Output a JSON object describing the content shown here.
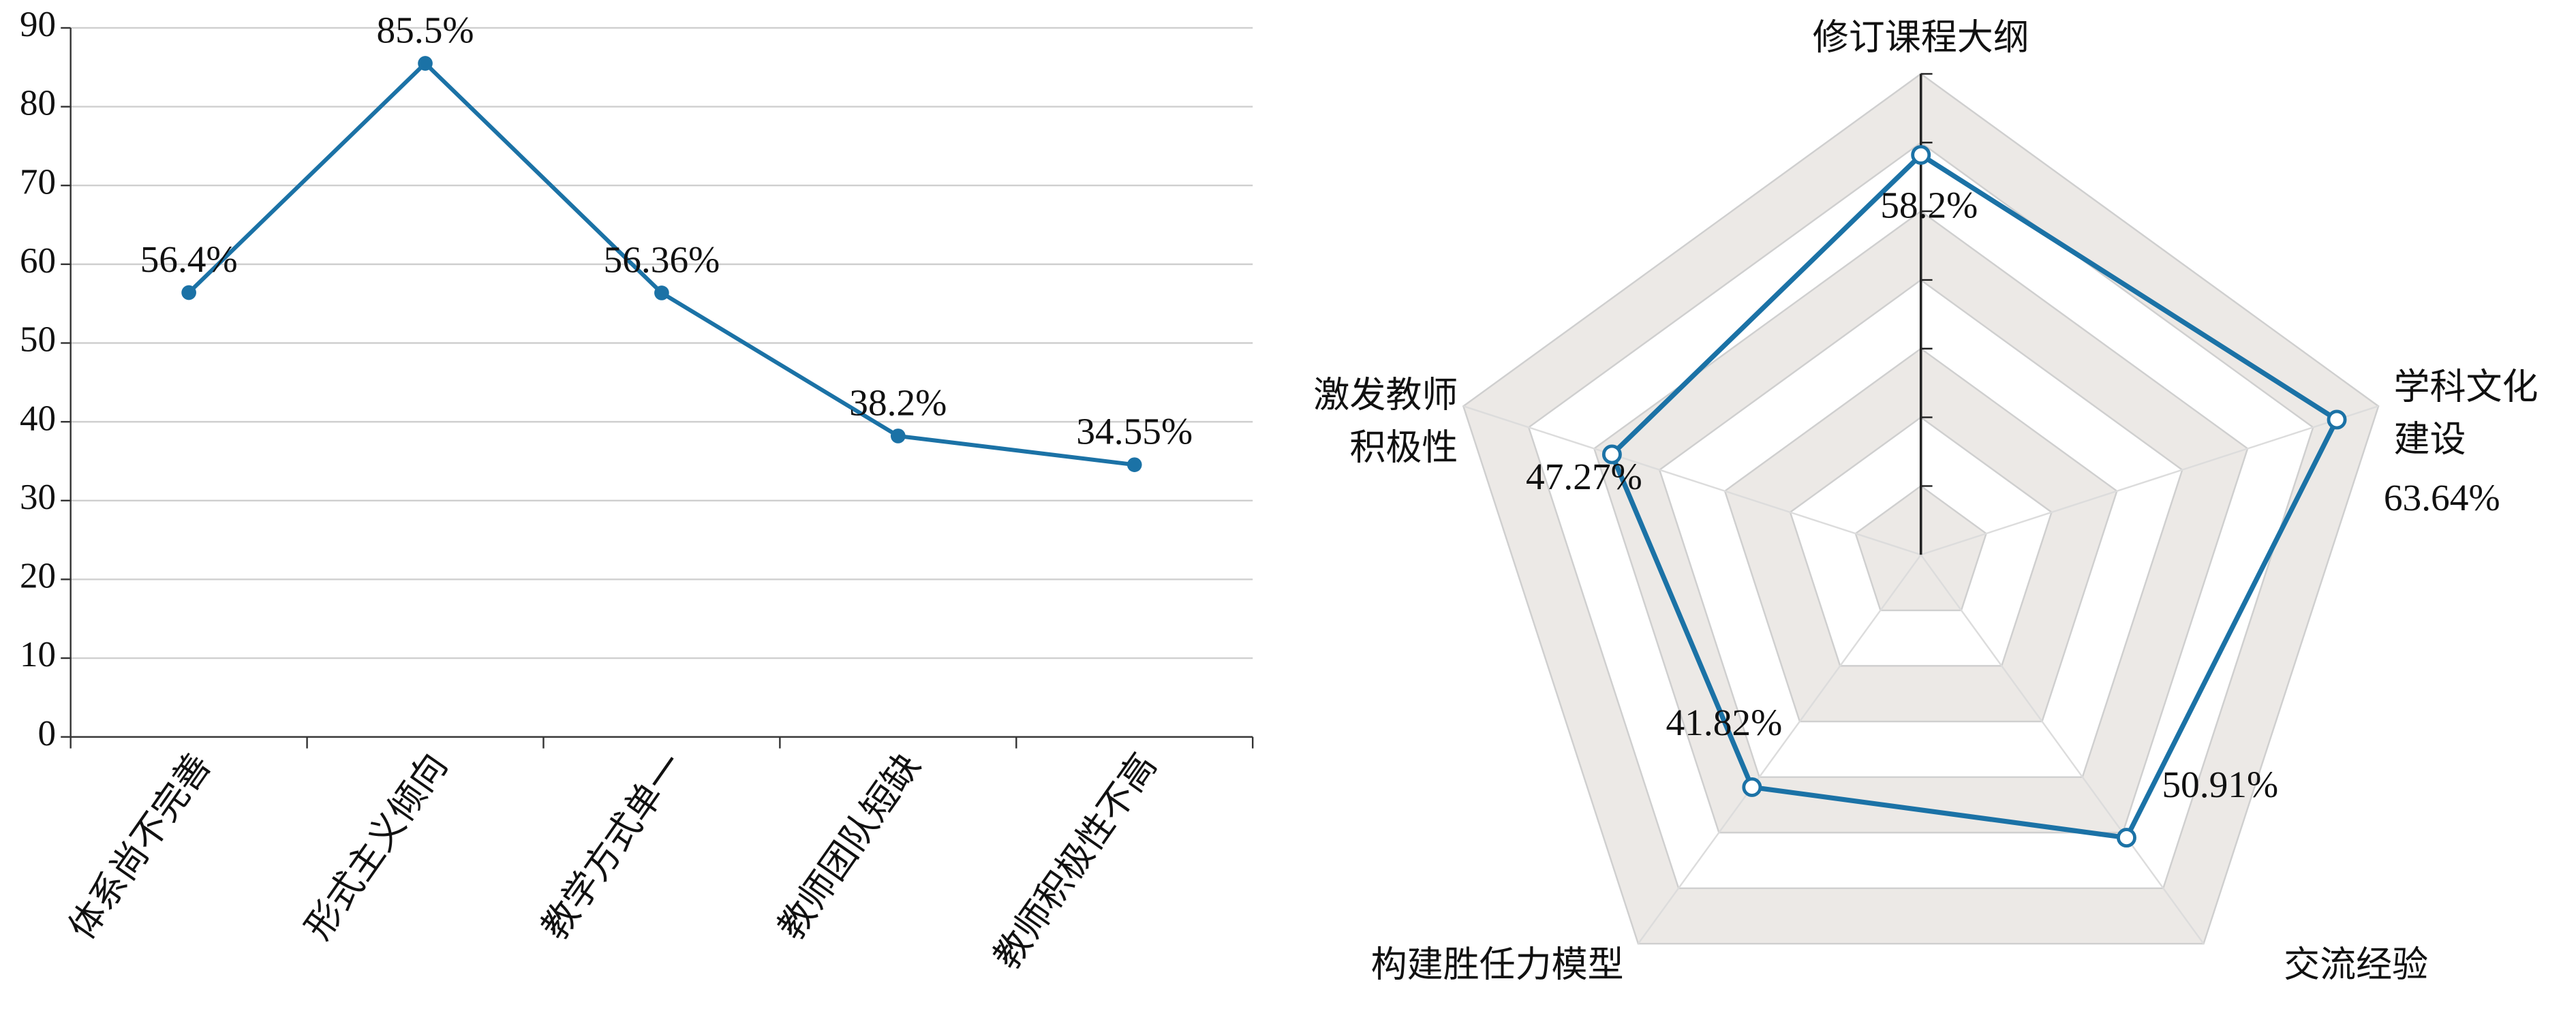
{
  "chart_data": [
    {
      "type": "line",
      "categories": [
        "体系尚不完善",
        "形式主义倾向",
        "教学方式单一",
        "教师团队短缺",
        "教师积极性不高"
      ],
      "values": [
        56.4,
        85.5,
        56.36,
        38.2,
        34.55
      ],
      "value_labels": [
        "56.4%",
        "85.5%",
        "56.36%",
        "38.2%",
        "34.55%"
      ],
      "color": "#1b72a6",
      "ylim": [
        0,
        90
      ],
      "yticks": [
        0,
        10,
        20,
        30,
        40,
        50,
        60,
        70,
        80,
        90
      ],
      "grid": true
    },
    {
      "type": "radar",
      "categories": [
        "修订课程大纲",
        "学科文化\n建设",
        "交流经验",
        "构建胜任力模型",
        "激发教师\n积极性"
      ],
      "values": [
        58.2,
        63.64,
        50.91,
        41.82,
        47.27
      ],
      "value_labels": [
        "58.2%",
        "63.64%",
        "50.91%",
        "41.82%",
        "47.27%"
      ],
      "color": "#1b72a6",
      "rlim": [
        0,
        70
      ],
      "rticks": [
        10,
        20,
        30,
        40,
        50,
        60,
        70
      ]
    }
  ]
}
